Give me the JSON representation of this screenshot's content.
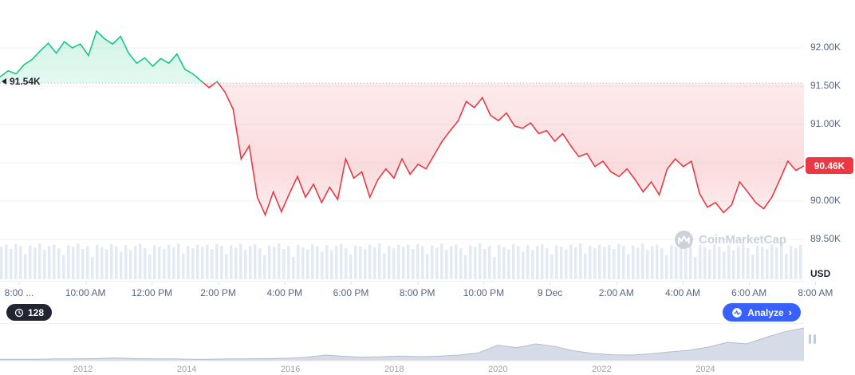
{
  "chart": {
    "baseline_label": "91.54K",
    "last_price_label": "90.46K",
    "unit_label": "USD",
    "watermark": "CoinMarketCap"
  },
  "controls": {
    "countdown": "128",
    "analyze_label": "Analyze",
    "analyze_chevron": "›"
  },
  "colors": {
    "up": "#16c784",
    "down": "#ea3943",
    "analyze_blue": "#3861fb",
    "badge_red": "#ea3943",
    "pill_dark": "#222531"
  },
  "chart_data": {
    "type": "line",
    "title": "",
    "x_ticks": [
      "8:00 ...",
      "10:00 AM",
      "12:00 PM",
      "2:00 PM",
      "4:00 PM",
      "6:00 PM",
      "8:00 PM",
      "10:00 PM",
      "9 Dec",
      "2:00 AM",
      "4:00 AM",
      "6:00 AM",
      "8:00 AM"
    ],
    "y_axis": [
      {
        "label": "92.00K",
        "value_k": 92.0
      },
      {
        "label": "91.50K",
        "value_k": 91.5
      },
      {
        "label": "91.00K",
        "value_k": 91.0
      },
      {
        "label": "",
        "value_k": 90.5
      },
      {
        "label": "90.00K",
        "value_k": 90.0
      },
      {
        "label": "89.50K",
        "value_k": 89.5
      }
    ],
    "ylim_k": [
      89.4,
      92.45
    ],
    "baseline_k": 91.54,
    "last_k": 90.46,
    "up_color": "#16c784",
    "down_color": "#ea3943",
    "grid": true,
    "price_k": [
      91.62,
      91.7,
      91.66,
      91.78,
      91.85,
      91.96,
      92.06,
      91.93,
      92.08,
      92.0,
      92.05,
      91.9,
      92.22,
      92.12,
      92.05,
      92.15,
      91.93,
      91.8,
      91.87,
      91.76,
      91.86,
      91.8,
      91.92,
      91.72,
      91.66,
      91.57,
      91.48,
      91.56,
      91.42,
      91.2,
      90.55,
      90.72,
      90.05,
      89.82,
      90.12,
      89.86,
      90.1,
      90.32,
      90.05,
      90.22,
      89.98,
      90.18,
      90.02,
      90.55,
      90.3,
      90.38,
      90.05,
      90.28,
      90.42,
      90.3,
      90.55,
      90.35,
      90.48,
      90.42,
      90.6,
      90.78,
      90.92,
      91.05,
      91.3,
      91.22,
      91.35,
      91.12,
      91.05,
      91.15,
      90.98,
      90.95,
      91.02,
      90.88,
      90.92,
      90.78,
      90.88,
      90.72,
      90.58,
      90.62,
      90.45,
      90.52,
      90.38,
      90.32,
      90.42,
      90.28,
      90.12,
      90.25,
      90.08,
      90.42,
      90.55,
      90.45,
      90.52,
      90.1,
      89.92,
      89.98,
      89.85,
      89.95,
      90.25,
      90.12,
      89.98,
      89.9,
      90.05,
      90.28,
      90.52,
      90.4,
      90.46
    ],
    "volume_profile": [
      0.85,
      0.92,
      0.78,
      0.95,
      0.88,
      0.6,
      0.9,
      0.82,
      0.96,
      0.75,
      0.88,
      0.93,
      0.8,
      0.55,
      0.9,
      0.85,
      0.97,
      0.78,
      0.88,
      0.5,
      0.92,
      0.84,
      0.76,
      0.94,
      0.87,
      0.68,
      0.91,
      0.73,
      0.88,
      0.95,
      0.81,
      0.58,
      0.9,
      0.86,
      0.77,
      0.93,
      0.83,
      0.96,
      0.62,
      0.89,
      0.8,
      0.92
    ],
    "timeline": {
      "x_range": [
        2010.4,
        2025.9
      ],
      "years": [
        "2012",
        "2014",
        "2016",
        "2018",
        "2020",
        "2022",
        "2024"
      ],
      "profile": [
        0.02,
        0.02,
        0.02,
        0.03,
        0.03,
        0.04,
        0.06,
        0.04,
        0.03,
        0.03,
        0.02,
        0.02,
        0.03,
        0.03,
        0.04,
        0.05,
        0.08,
        0.15,
        0.11,
        0.08,
        0.1,
        0.12,
        0.1,
        0.12,
        0.15,
        0.22,
        0.46,
        0.38,
        0.5,
        0.42,
        0.28,
        0.2,
        0.16,
        0.15,
        0.19,
        0.25,
        0.3,
        0.4,
        0.55,
        0.5,
        0.7,
        0.88,
        1.0
      ]
    }
  }
}
